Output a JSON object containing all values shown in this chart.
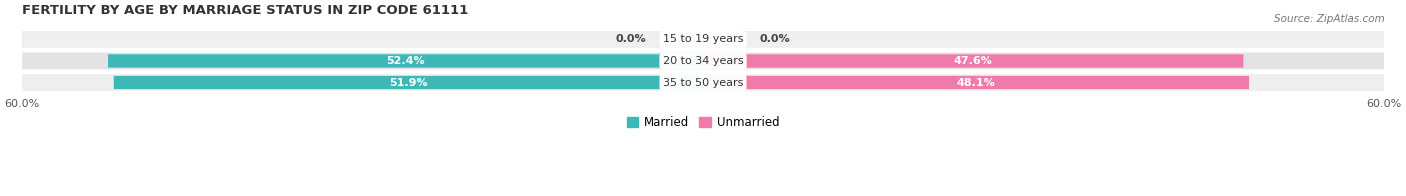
{
  "title": "FERTILITY BY AGE BY MARRIAGE STATUS IN ZIP CODE 61111",
  "source": "Source: ZipAtlas.com",
  "rows": [
    {
      "label": "15 to 19 years",
      "married": 0.0,
      "unmarried": 0.0
    },
    {
      "label": "20 to 34 years",
      "married": 52.4,
      "unmarried": 47.6
    },
    {
      "label": "35 to 50 years",
      "married": 51.9,
      "unmarried": 48.1
    }
  ],
  "axis_limit": 60.0,
  "married_color": "#3db8b8",
  "unmarried_color": "#f07aaa",
  "row_bg_color_odd": "#efefef",
  "row_bg_color_even": "#e4e4e4",
  "bar_height": 0.62,
  "label_fontsize": 8.0,
  "title_fontsize": 9.5,
  "source_fontsize": 7.5,
  "axis_label_fontsize": 8.0,
  "legend_fontsize": 8.5,
  "text_color_white": "#ffffff",
  "text_color_dark": "#444444"
}
